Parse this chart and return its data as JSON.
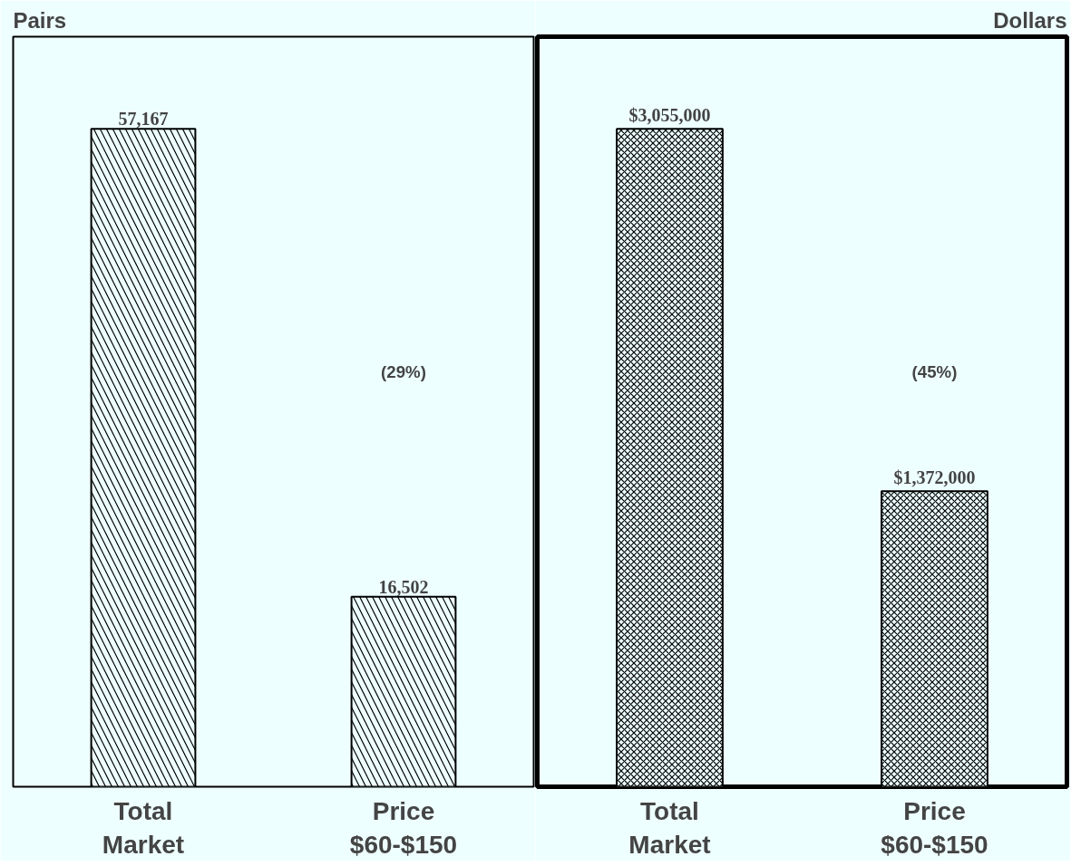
{
  "chart_data": [
    {
      "type": "bar",
      "title": "Pairs",
      "categories": [
        "Total Market",
        "Price $60-$150"
      ],
      "values": [
        57167,
        16502
      ],
      "value_labels": [
        "57,167",
        "16,502"
      ],
      "color": "#eeffff",
      "annotations": [
        "(29%)"
      ]
    },
    {
      "type": "bar",
      "title": "Dollars",
      "categories": [
        "Total Market",
        "Price $60-$150"
      ],
      "values": [
        3055000,
        1372000
      ],
      "value_labels": [
        "$3,055,000",
        "$1,372,000"
      ],
      "color": "#eeffff",
      "annotations": [
        "(45%)"
      ]
    }
  ]
}
